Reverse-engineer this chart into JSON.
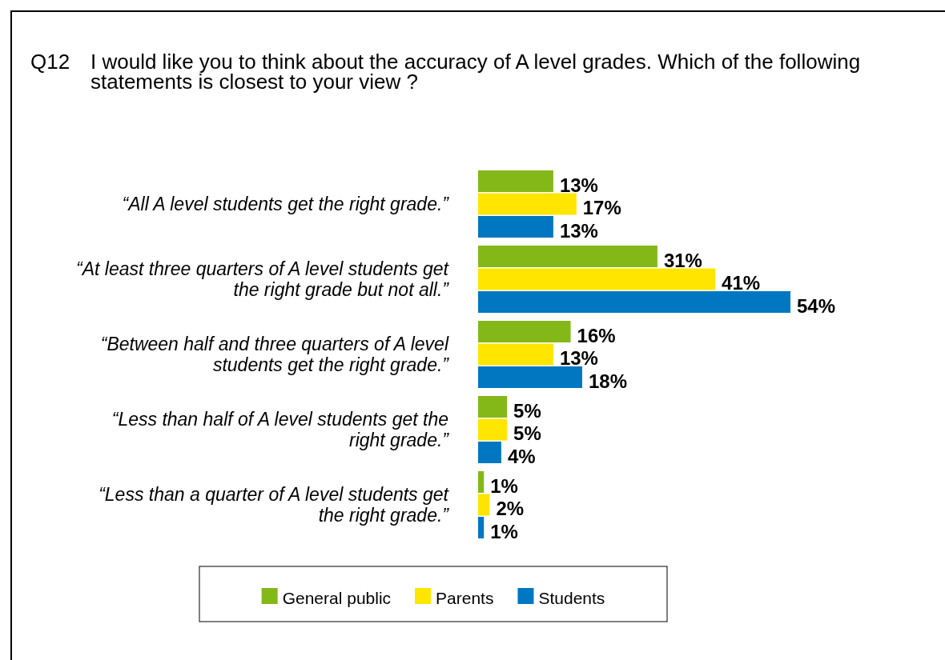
{
  "chart_data": {
    "type": "bar",
    "orientation": "horizontal",
    "title": "Q12 I would like you to think about the accuracy of A level grades. Which of the following statements is closest to your view ?",
    "categories": [
      "“All A level students get the right grade.”",
      "“At least three quarters of A level students get the right grade but not all.”",
      "“Between half and three quarters of A level students get the right grade.”",
      "“Less than half of A level students get the right grade.”",
      "“Less than a quarter of A level students get the right grade.”"
    ],
    "series": [
      {
        "name": "General public",
        "color": "#84b819",
        "values": [
          13,
          31,
          16,
          5,
          1
        ],
        "value_labels": [
          "13%",
          "31%",
          "16%",
          "5%",
          "1%"
        ]
      },
      {
        "name": "Parents",
        "color": "#ffe500",
        "values": [
          17,
          41,
          13,
          5,
          2
        ],
        "value_labels": [
          "17%",
          "41%",
          "13%",
          "5%",
          "2%"
        ]
      },
      {
        "name": "Students",
        "color": "#0077c0",
        "values": [
          13,
          54,
          18,
          4,
          1
        ],
        "value_labels": [
          "13%",
          "54%",
          "18%",
          "4%",
          "1%"
        ]
      }
    ],
    "tick_labels": "y",
    "legend": "bottom"
  }
}
